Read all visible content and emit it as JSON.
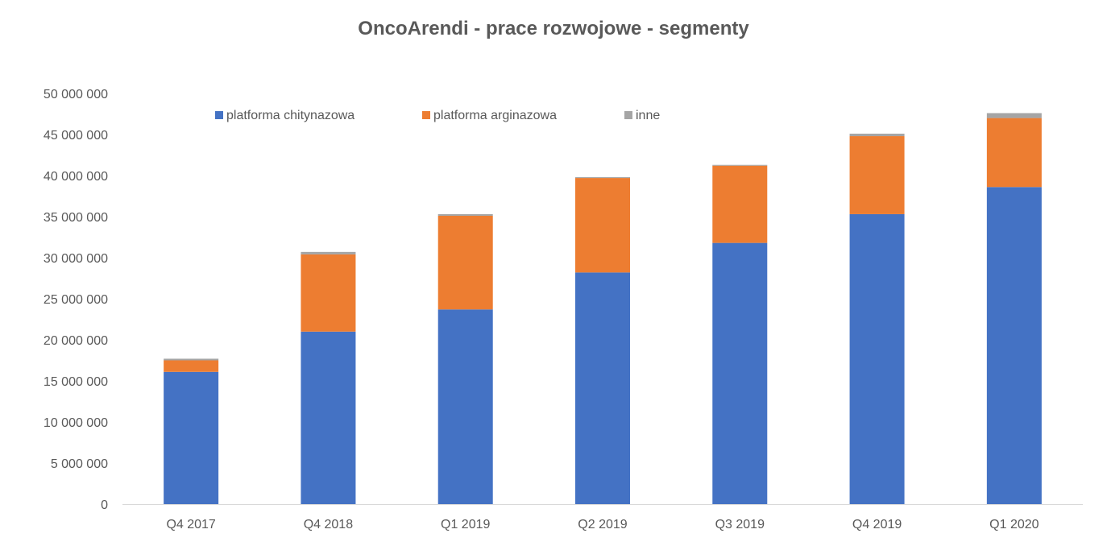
{
  "chart_data": {
    "type": "bar",
    "stacked": true,
    "title": "OncoArendi - prace rozwojowe - segmenty",
    "xlabel": "",
    "ylabel": "",
    "categories": [
      "Q4 2017",
      "Q4 2018",
      "Q1 2019",
      "Q2 2019",
      "Q3 2019",
      "Q4 2019",
      "Q1 2020"
    ],
    "series": [
      {
        "name": "platforma chitynazowa",
        "color": "#4472C4",
        "values": [
          16100000,
          21000000,
          23700000,
          28200000,
          31800000,
          35300000,
          38600000
        ]
      },
      {
        "name": "platforma arginazowa",
        "color": "#ED7D31",
        "values": [
          1400000,
          9400000,
          11400000,
          11500000,
          9400000,
          9500000,
          8400000
        ]
      },
      {
        "name": "inne",
        "color": "#A5A5A5",
        "values": [
          200000,
          300000,
          200000,
          100000,
          100000,
          300000,
          600000
        ]
      }
    ],
    "yticks": [
      "0",
      "5 000 000",
      "10 000 000",
      "15 000 000",
      "20 000 000",
      "25 000 000",
      "30 000 000",
      "35 000 000",
      "40 000 000",
      "45 000 000",
      "50 000 000"
    ],
    "ylim": [
      0,
      50000000
    ],
    "grid": false,
    "legend": "top"
  }
}
